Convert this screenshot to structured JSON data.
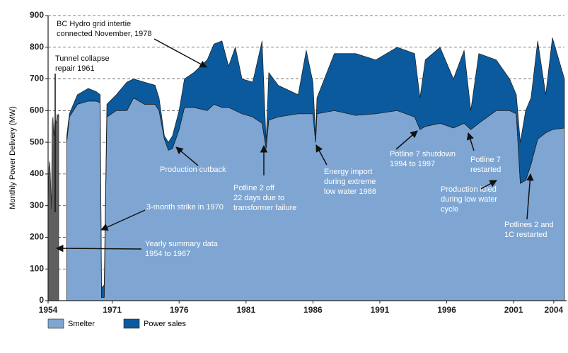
{
  "chart_data": {
    "type": "stacked-area",
    "ylabel": "Monthly Power Delivery (MW)",
    "ylim": [
      0,
      900
    ],
    "yticks": [
      0,
      100,
      200,
      300,
      400,
      500,
      600,
      700,
      800,
      900
    ],
    "xlim": [
      1954,
      2004.8
    ],
    "xbreak": 1967,
    "xticks": [
      1954,
      1971,
      1976,
      1981,
      1986,
      1991,
      1996,
      2001,
      2004
    ],
    "grid": true,
    "summary": {
      "color": "#5f5f5f",
      "x": [
        1954,
        1955,
        1956,
        1957,
        1958,
        1959,
        1960,
        1961,
        1962,
        1963,
        1964,
        1965,
        1966,
        1967
      ],
      "values": [
        300,
        420,
        440,
        380,
        290,
        560,
        580,
        520,
        560,
        570,
        560,
        590,
        580,
        590
      ]
    },
    "x": [
      1967.6,
      1967.8,
      1968.1,
      1968.4,
      1969.2,
      1969.8,
      1970.1,
      1970.2,
      1970.4,
      1970.6,
      1971.3,
      1972.1,
      1972.6,
      1973.4,
      1974.2,
      1974.5,
      1974.9,
      1975.2,
      1975.5,
      1976.0,
      1976.4,
      1977.1,
      1978.1,
      1978.6,
      1979.2,
      1979.7,
      1980.2,
      1980.7,
      1981.5,
      1982.2,
      1982.5,
      1982.7,
      1983.4,
      1984.9,
      1985.5,
      1986.0,
      1986.2,
      1986.3,
      1987.6,
      1989.2,
      1990.7,
      1992.3,
      1993.6,
      1994.0,
      1994.4,
      1995.5,
      1996.5,
      1997.3,
      1997.8,
      1998.4,
      1999.7,
      2000.7,
      2001.2,
      2001.5,
      2001.9,
      2002.3,
      2002.8,
      2003.4,
      2003.9,
      2004.8
    ],
    "series": [
      {
        "name": "Smelter",
        "color": "#7fa6d2",
        "values": [
          500,
          580,
          600,
          620,
          630,
          630,
          625,
          10,
          10,
          580,
          600,
          600,
          640,
          620,
          620,
          600,
          510,
          475,
          480,
          540,
          610,
          610,
          600,
          620,
          610,
          610,
          600,
          590,
          580,
          560,
          480,
          570,
          580,
          590,
          590,
          590,
          500,
          590,
          600,
          585,
          590,
          600,
          580,
          540,
          550,
          560,
          545,
          560,
          540,
          560,
          600,
          600,
          590,
          370,
          380,
          430,
          510,
          530,
          540,
          545
        ]
      },
      {
        "name": "Power sales",
        "color": "#0b5a9e",
        "values": [
          20,
          10,
          20,
          30,
          40,
          30,
          25,
          30,
          40,
          40,
          50,
          90,
          60,
          70,
          60,
          40,
          10,
          25,
          40,
          60,
          90,
          110,
          160,
          190,
          210,
          130,
          200,
          110,
          110,
          260,
          20,
          150,
          100,
          60,
          200,
          100,
          20,
          50,
          180,
          195,
          170,
          200,
          200,
          100,
          210,
          240,
          155,
          230,
          60,
          220,
          160,
          100,
          60,
          130,
          220,
          210,
          310,
          120,
          290,
          155
        ]
      }
    ],
    "annotations": [
      {
        "lines": [
          "BC Hydro grid intertie",
          "connected November, 1978"
        ],
        "color": "#111"
      },
      {
        "lines": [
          "Tunnel collapse",
          "repair 1961"
        ],
        "color": "#111"
      },
      {
        "lines": [
          "Production cutback"
        ],
        "color": "#fff"
      },
      {
        "lines": [
          "3-month strike in 1970"
        ],
        "color": "#fff"
      },
      {
        "lines": [
          "Yearly summary data",
          "1954 to 1967"
        ],
        "color": "#fff"
      },
      {
        "lines": [
          "Potline 2 off",
          "22 days due to",
          "transformer failure"
        ],
        "color": "#fff"
      },
      {
        "lines": [
          "Energy import",
          "during extreme",
          "low water 1986"
        ],
        "color": "#fff"
      },
      {
        "lines": [
          "Potline 7 shutdown",
          "1994 to 1997"
        ],
        "color": "#fff"
      },
      {
        "lines": [
          "Potline 7",
          "restarted"
        ],
        "color": "#fff"
      },
      {
        "lines": [
          "Production idled",
          "during low water",
          "cycle"
        ],
        "color": "#fff"
      },
      {
        "lines": [
          "Potlines 2 and",
          "1C restarted"
        ],
        "color": "#fff"
      }
    ]
  }
}
